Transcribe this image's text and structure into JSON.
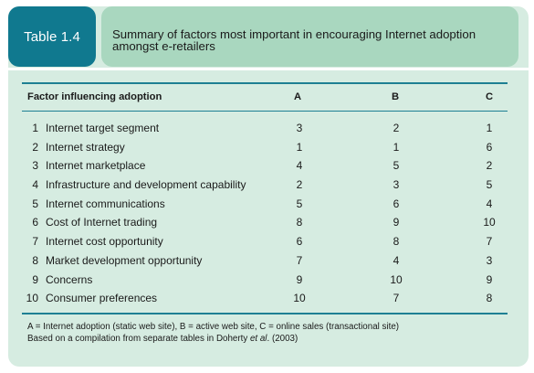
{
  "table_label": "Table 1.4",
  "caption": {
    "line1": "Summary of factors most important in encouraging Internet adoption",
    "line2": "amongst e-retailers"
  },
  "columns": {
    "factor": "Factor influencing adoption",
    "a": "A",
    "b": "B",
    "c": "C"
  },
  "rows": [
    {
      "num": "1",
      "factor": "Internet target segment",
      "a": "3",
      "b": "2",
      "c": "1"
    },
    {
      "num": "2",
      "factor": "Internet strategy",
      "a": "1",
      "b": "1",
      "c": "6"
    },
    {
      "num": "3",
      "factor": "Internet marketplace",
      "a": "4",
      "b": "5",
      "c": "2"
    },
    {
      "num": "4",
      "factor": "Infrastructure and development capability",
      "a": "2",
      "b": "3",
      "c": "5"
    },
    {
      "num": "5",
      "factor": "Internet communications",
      "a": "5",
      "b": "6",
      "c": "4"
    },
    {
      "num": "6",
      "factor": "Cost of Internet trading",
      "a": "8",
      "b": "9",
      "c": "10"
    },
    {
      "num": "7",
      "factor": "Internet cost opportunity",
      "a": "6",
      "b": "8",
      "c": "7"
    },
    {
      "num": "8",
      "factor": "Market development opportunity",
      "a": "7",
      "b": "4",
      "c": "3"
    },
    {
      "num": "9",
      "factor": "Concerns",
      "a": "9",
      "b": "10",
      "c": "9"
    },
    {
      "num": "10",
      "factor": "Consumer preferences",
      "a": "10",
      "b": "7",
      "c": "8"
    }
  ],
  "notes": {
    "line1": "A = Internet adoption (static web site), B = active web site, C = online sales (transactional site)",
    "line2_prefix": "Based on a compilation from separate tables in Doherty ",
    "line2_italic": "et al",
    "line2_suffix": ". (2003)"
  },
  "colors": {
    "label_bg": "#10798f",
    "caption_bg": "#a9d7bf",
    "panel_bg": "#d6ece1",
    "rule": "#1e7f93"
  }
}
